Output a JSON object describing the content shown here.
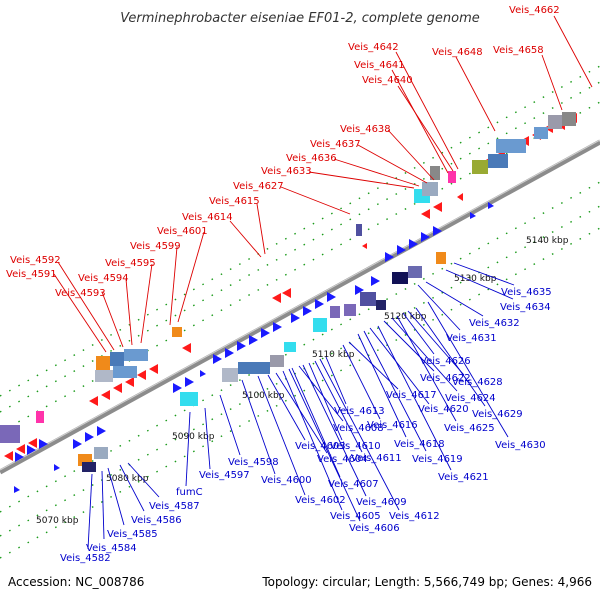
{
  "title": "Verminephrobacter eiseniae EF01-2, complete genome",
  "footer": {
    "accession": "Accession: NC_008786",
    "summary": "Topology: circular; Length: 5,566,749 bp; Genes: 4,966"
  },
  "colors": {
    "forward_label": "#dd0000",
    "reverse_label": "#0000cc",
    "forward_arrow": "#ff1a1a",
    "reverse_arrow": "#1a1aff",
    "backbone": "#8c8c8c",
    "tick": "#1a9a1a"
  },
  "scale_ticks": [
    "5070 kbp",
    "5080 kbp",
    "5090 kbp",
    "5100 kbp",
    "5110 kbp",
    "5120 kbp",
    "5130 kbp",
    "5140 kbp"
  ],
  "forward_genes": [
    "Veis_4591",
    "Veis_4592",
    "Veis_4593",
    "Veis_4594",
    "Veis_4595",
    "Veis_4599",
    "Veis_4601",
    "Veis_4614",
    "Veis_4615",
    "Veis_4627",
    "Veis_4633",
    "Veis_4636",
    "Veis_4637",
    "Veis_4638",
    "Veis_4640",
    "Veis_4641",
    "Veis_4642",
    "Veis_4648",
    "Veis_4658",
    "Veis_4662"
  ],
  "reverse_genes": [
    "Veis_4582",
    "Veis_4584",
    "Veis_4585",
    "Veis_4586",
    "Veis_4587",
    "fumC",
    "Veis_4597",
    "Veis_4598",
    "Veis_4600",
    "Veis_4602",
    "Veis_4603",
    "Veis_4604",
    "Veis_4605",
    "Veis_4606",
    "Veis_4607",
    "Veis_4608",
    "Veis_4609",
    "Veis_4610",
    "Veis_4611",
    "Veis_4612",
    "Veis_4613",
    "Veis_4616",
    "Veis_4617",
    "Veis_4618",
    "Veis_4619",
    "Veis_4620",
    "Veis_4621",
    "Veis_4622",
    "Veis_4624",
    "Veis_4625",
    "Veis_4626",
    "Veis_4628",
    "Veis_4629",
    "Veis_4630",
    "Veis_4631",
    "Veis_4632",
    "Veis_4634",
    "Veis_4635"
  ]
}
